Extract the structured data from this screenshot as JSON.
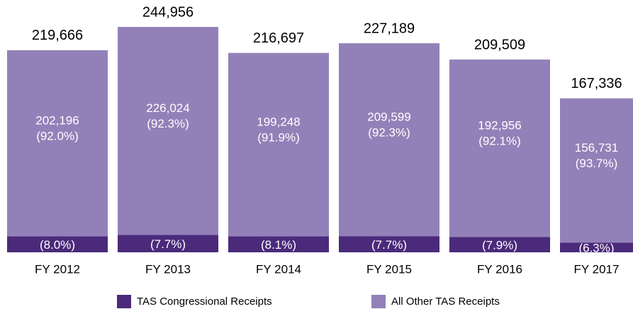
{
  "chart_data": {
    "type": "stacked-bar",
    "categories": [
      "FY 2012",
      "FY 2013",
      "FY 2014",
      "FY 2015",
      "FY 2016",
      "FY 2017"
    ],
    "series": [
      {
        "name": "TAS Congressional Receipts",
        "color": "#4b2a7b",
        "values": [
          17470,
          18932,
          17449,
          17590,
          16553,
          10605
        ],
        "value_labels": [
          "17,470",
          "18,932",
          "17,449",
          "17,590",
          "16,553",
          "10,605"
        ],
        "percent_labels": [
          "(8.0%)",
          "(7.7%)",
          "(8.1%)",
          "(7.7%)",
          "(7.9%)",
          "(6.3%)"
        ]
      },
      {
        "name": "All Other TAS Receipts",
        "color": "#9281b8",
        "values": [
          202196,
          226024,
          199248,
          209599,
          192956,
          156731
        ],
        "value_labels": [
          "202,196",
          "226,024",
          "199,248",
          "209,599",
          "192,956",
          "156,731"
        ],
        "percent_labels": [
          "(92.0%)",
          "(92.3%)",
          "(91.9%)",
          "(92.3%)",
          "(92.1%)",
          "(93.7%)"
        ]
      }
    ],
    "totals": [
      219666,
      244956,
      216697,
      227189,
      209509,
      167336
    ],
    "total_labels": [
      "219,666",
      "244,956",
      "216,697",
      "227,189",
      "209,509",
      "167,336"
    ]
  }
}
